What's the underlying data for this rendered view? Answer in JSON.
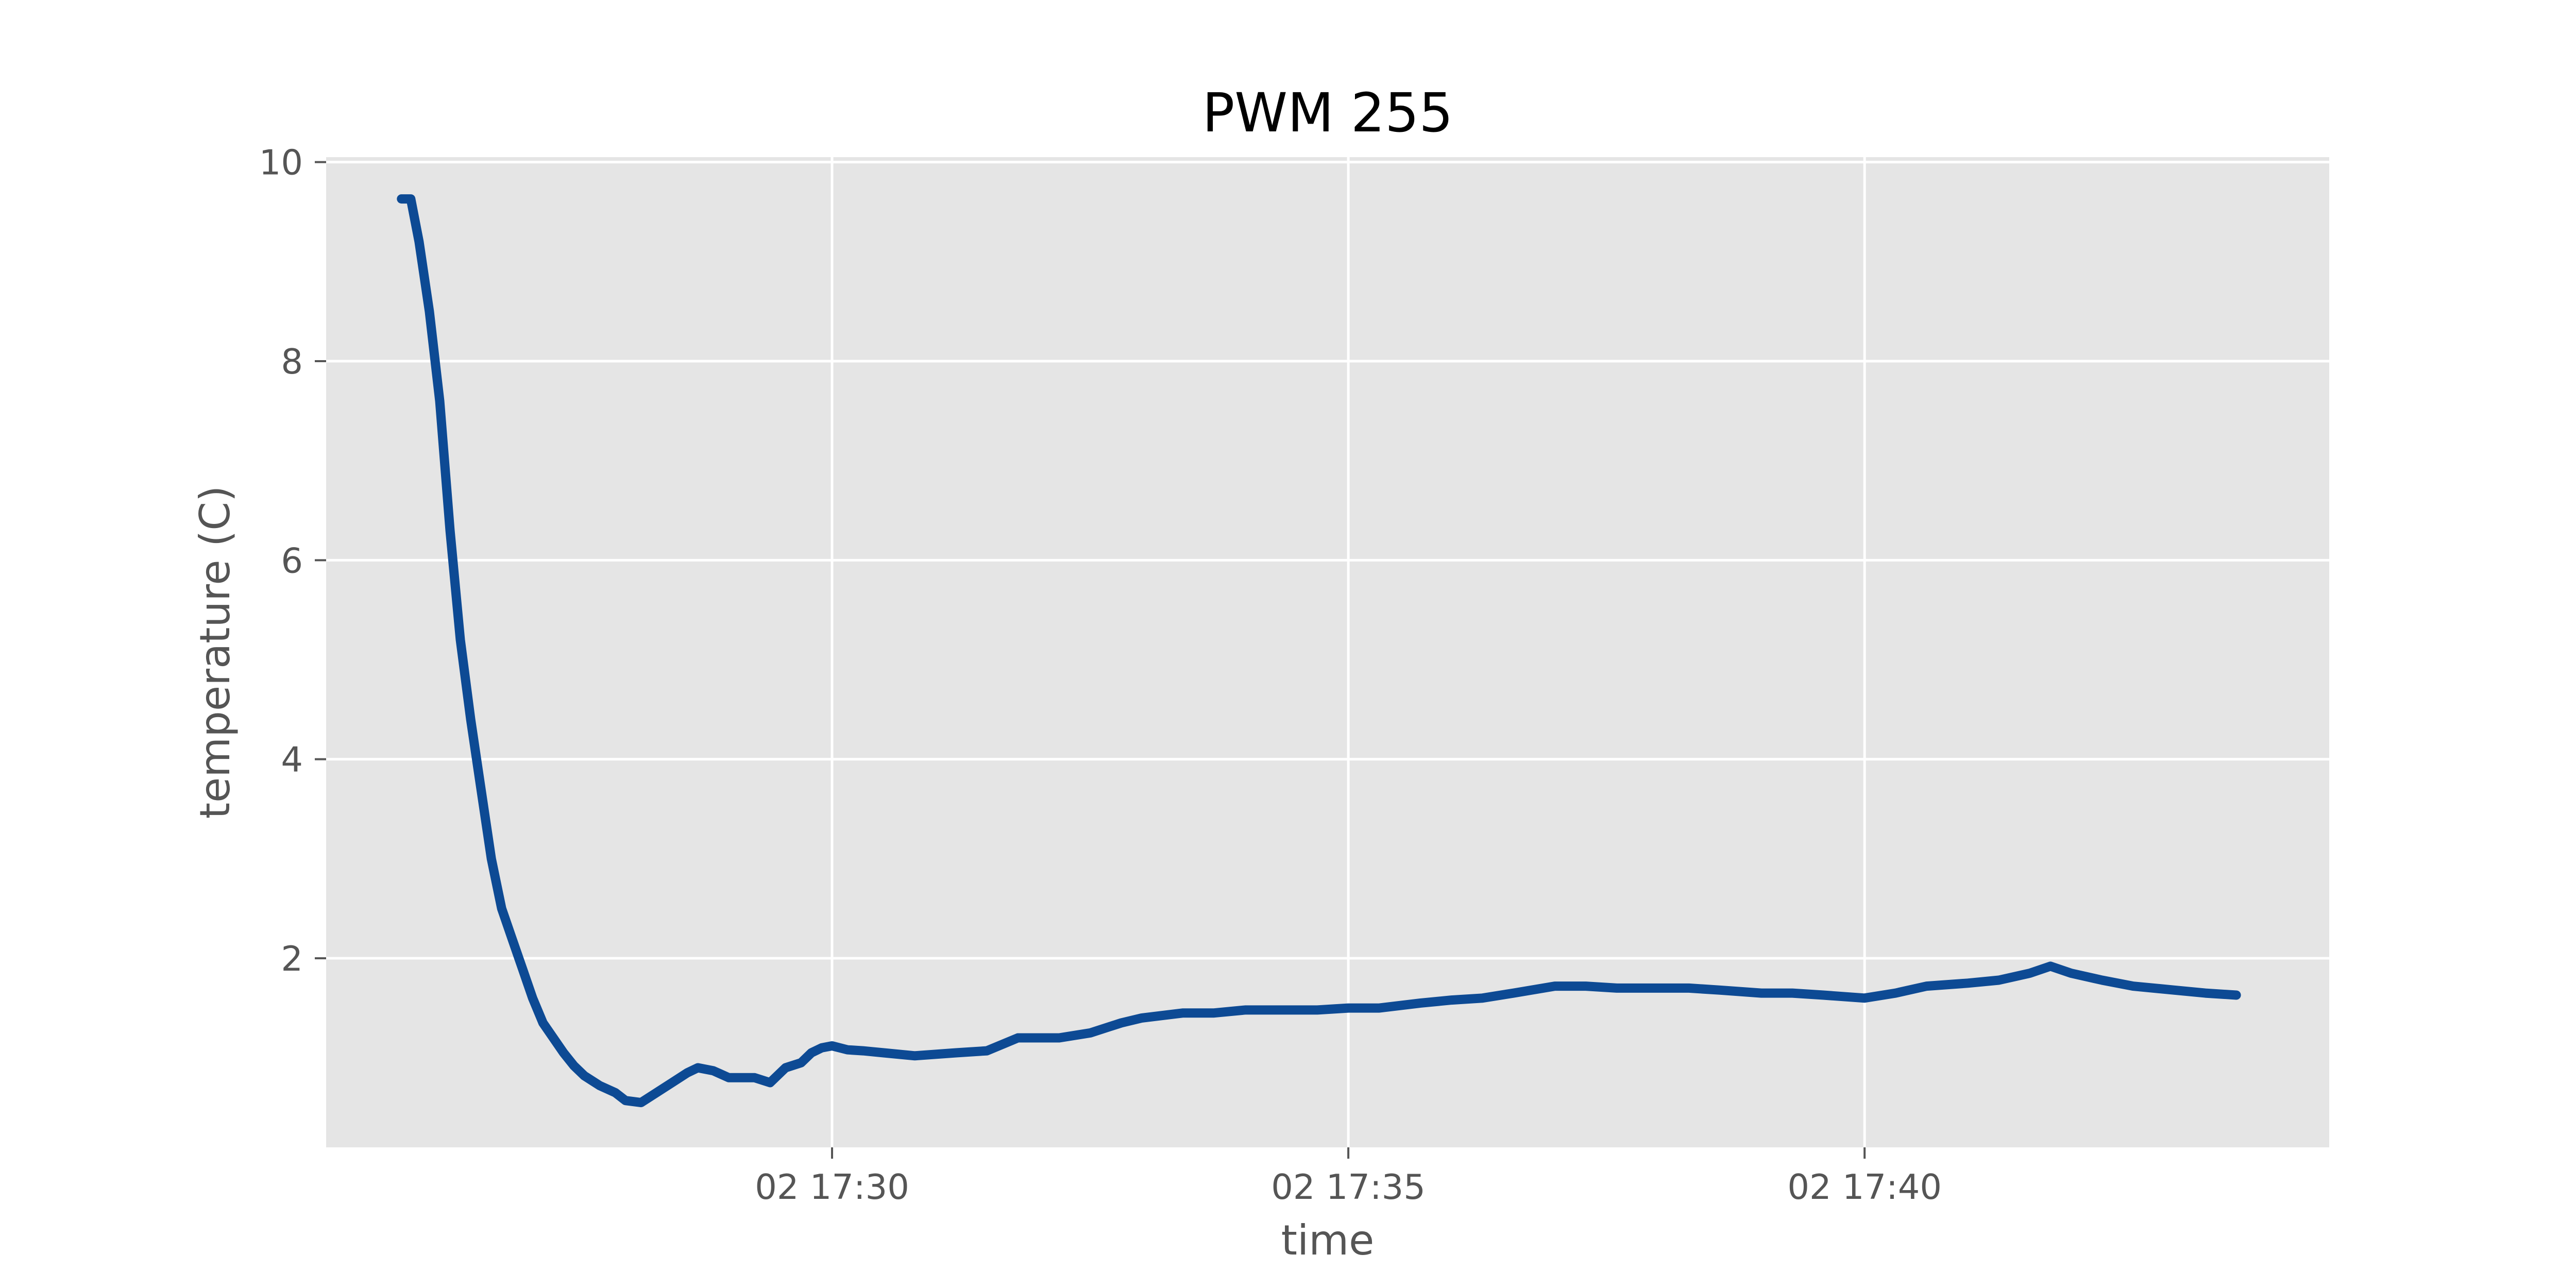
{
  "chart_data": {
    "type": "line",
    "title": "PWM 255",
    "xlabel": "time",
    "ylabel": "temperature (C)",
    "x_ticks": [
      "02 17:30",
      "02 17:35",
      "02 17:40"
    ],
    "x_tick_values_min": [
      30,
      35,
      40
    ],
    "x_unit": "minutes past 17:00 on day 02",
    "xlim": [
      25.1,
      44.5
    ],
    "y_ticks": [
      2,
      4,
      6,
      8,
      10
    ],
    "ylim": [
      0.1,
      10.05
    ],
    "grid": true,
    "legend": "none",
    "colors": {
      "plot_background": "#e5e5e5",
      "grid": "#ffffff",
      "series": "#0d4a94"
    },
    "series": [
      {
        "x": [
          25.83,
          25.92,
          26.0,
          26.1,
          26.2,
          26.3,
          26.4,
          26.5,
          26.6,
          26.7,
          26.8,
          26.9,
          27.0,
          27.1,
          27.2,
          27.3,
          27.4,
          27.5,
          27.6,
          27.75,
          27.9,
          28.0,
          28.15,
          28.3,
          28.45,
          28.6,
          28.7,
          28.85,
          29.0,
          29.1,
          29.25,
          29.4,
          29.55,
          29.7,
          29.8,
          29.9,
          30.0,
          30.15,
          30.3,
          30.5,
          30.8,
          31.2,
          31.5,
          31.8,
          32.2,
          32.5,
          32.8,
          33.0,
          33.4,
          33.7,
          34.0,
          34.4,
          34.7,
          35.0,
          35.3,
          35.7,
          36.0,
          36.3,
          36.6,
          37.0,
          37.3,
          37.6,
          38.0,
          38.3,
          38.6,
          39.0,
          39.3,
          39.6,
          40.0,
          40.3,
          40.6,
          41.0,
          41.3,
          41.6,
          41.8,
          42.0,
          42.3,
          42.6,
          43.0,
          43.3,
          43.6
        ],
        "y": [
          9.63,
          9.63,
          9.2,
          8.5,
          7.6,
          6.3,
          5.2,
          4.4,
          3.7,
          3.0,
          2.5,
          2.2,
          1.9,
          1.6,
          1.35,
          1.2,
          1.05,
          0.92,
          0.82,
          0.72,
          0.65,
          0.57,
          0.55,
          0.65,
          0.75,
          0.85,
          0.9,
          0.87,
          0.8,
          0.8,
          0.8,
          0.75,
          0.9,
          0.95,
          1.05,
          1.1,
          1.12,
          1.08,
          1.07,
          1.05,
          1.02,
          1.05,
          1.07,
          1.2,
          1.2,
          1.25,
          1.35,
          1.4,
          1.45,
          1.45,
          1.48,
          1.48,
          1.48,
          1.5,
          1.5,
          1.55,
          1.58,
          1.6,
          1.65,
          1.72,
          1.72,
          1.7,
          1.7,
          1.7,
          1.68,
          1.65,
          1.65,
          1.63,
          1.6,
          1.65,
          1.72,
          1.75,
          1.78,
          1.85,
          1.92,
          1.85,
          1.78,
          1.72,
          1.68,
          1.65,
          1.63
        ]
      }
    ]
  }
}
